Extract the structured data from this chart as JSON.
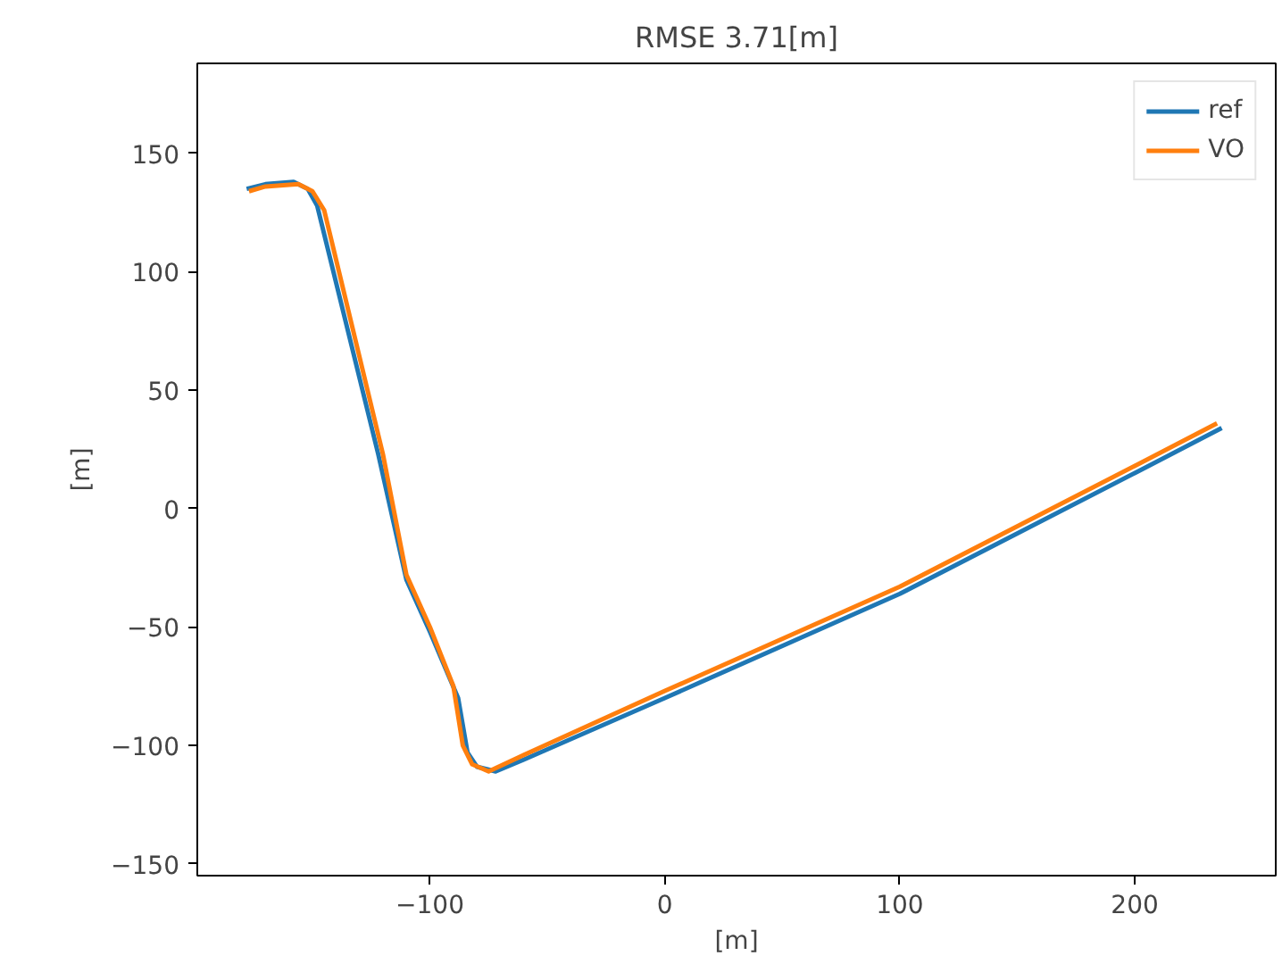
{
  "chart_data": {
    "type": "line",
    "title": "RMSE 3.71[m]",
    "xlabel": "[m]",
    "ylabel": "[m]",
    "xlim": [
      -199,
      260
    ],
    "ylim": [
      -155,
      188
    ],
    "xticks": [
      -100,
      0,
      100,
      200
    ],
    "yticks": [
      -150,
      -100,
      -50,
      0,
      50,
      100,
      150
    ],
    "grid": false,
    "legend": "top right",
    "series": [
      {
        "name": "ref",
        "color": "#1f77b4",
        "x": [
          -178,
          -170,
          -158,
          -152,
          -148,
          -122,
          -110,
          -100,
          -88,
          -84,
          -80,
          -72,
          -60,
          0,
          100,
          200,
          237
        ],
        "values": [
          135,
          137,
          138,
          135,
          128,
          23,
          -30,
          -52,
          -80,
          -103,
          -109,
          -111,
          -106,
          -80,
          -36,
          15,
          34
        ]
      },
      {
        "name": "VO",
        "color": "#ff7f0e",
        "x": [
          -177,
          -170,
          -156,
          -150,
          -145,
          -120,
          -110,
          -100,
          -90,
          -86,
          -82,
          -75,
          -60,
          0,
          100,
          200,
          235
        ],
        "values": [
          134,
          136,
          137,
          134,
          126,
          23,
          -28,
          -50,
          -75,
          -100,
          -108,
          -111,
          -104,
          -77,
          -33,
          18,
          36
        ]
      }
    ]
  }
}
